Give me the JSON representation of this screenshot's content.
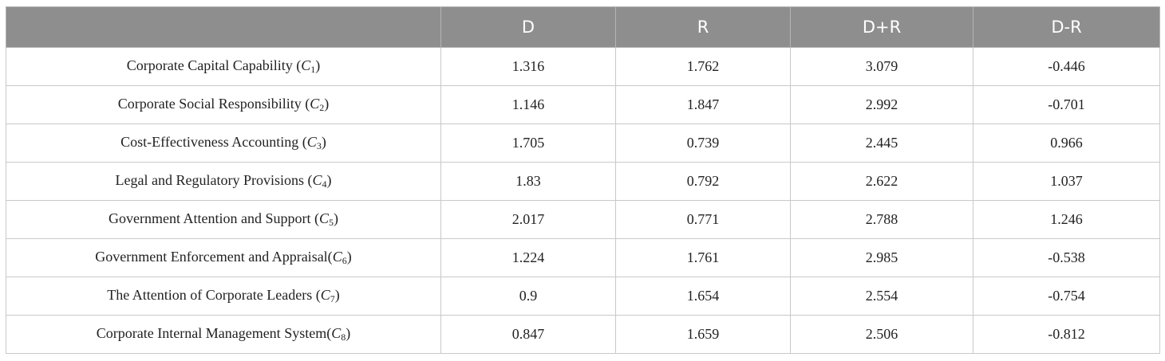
{
  "table": {
    "headers": [
      "",
      "D",
      "R",
      "D+R",
      "D-R"
    ],
    "rows": [
      {
        "label": "Corporate Capital Capability (",
        "symbol": "C",
        "sub": "1",
        "close": ")",
        "values": [
          "1.316",
          "1.762",
          "3.079",
          "-0.446"
        ]
      },
      {
        "label": "Corporate Social Responsibility (",
        "symbol": "C",
        "sub": "2",
        "close": ")",
        "values": [
          "1.146",
          "1.847",
          "2.992",
          "-0.701"
        ]
      },
      {
        "label": "Cost-Effectiveness Accounting (",
        "symbol": "C",
        "sub": "3",
        "close": ")",
        "values": [
          "1.705",
          "0.739",
          "2.445",
          "0.966"
        ]
      },
      {
        "label": "Legal and Regulatory Provisions (",
        "symbol": "C",
        "sub": "4",
        "close": ")",
        "values": [
          "1.83",
          "0.792",
          "2.622",
          "1.037"
        ]
      },
      {
        "label": "Government Attention and Support (",
        "symbol": "C",
        "sub": "5",
        "close": ")",
        "values": [
          "2.017",
          "0.771",
          "2.788",
          "1.246"
        ]
      },
      {
        "label": "Government Enforcement and Appraisal(",
        "symbol": "C",
        "sub": "6",
        "close": ")",
        "values": [
          "1.224",
          "1.761",
          "2.985",
          "-0.538"
        ]
      },
      {
        "label": "The Attention of Corporate Leaders (",
        "symbol": "C",
        "sub": "7",
        "close": ")",
        "values": [
          "0.9",
          "1.654",
          "2.554",
          "-0.754"
        ]
      },
      {
        "label": "Corporate Internal Management System(",
        "symbol": "C",
        "sub": "8",
        "close": ")",
        "values": [
          "0.847",
          "1.659",
          "2.506",
          "-0.812"
        ]
      }
    ]
  }
}
